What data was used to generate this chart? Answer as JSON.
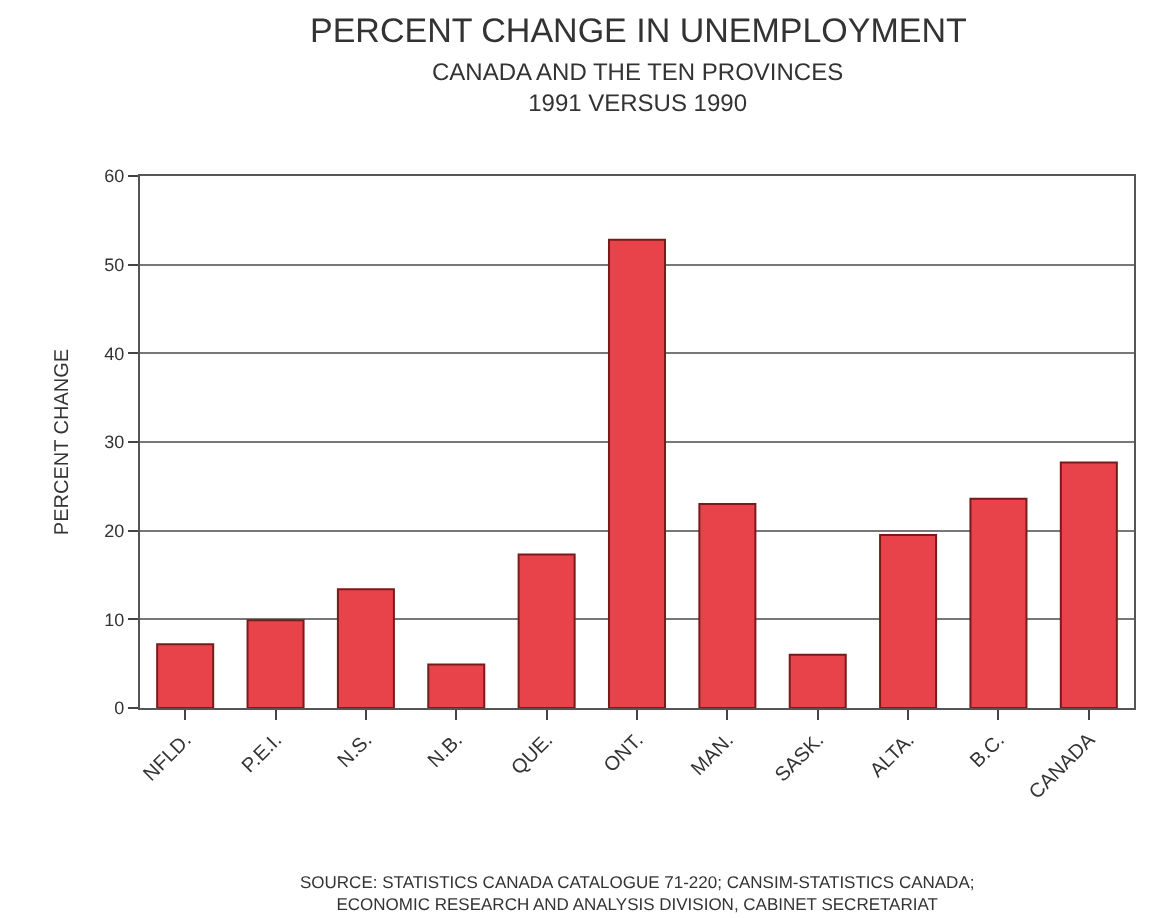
{
  "chart_data": {
    "type": "bar",
    "title": "PERCENT CHANGE IN UNEMPLOYMENT",
    "subtitle": "CANADA AND THE TEN PROVINCES\n1991 VERSUS 1990",
    "ylabel": "PERCENT CHANGE",
    "categories": [
      "NFLD.",
      "P.E.I.",
      "N.S.",
      "N.B.",
      "QUE.",
      "ONT.",
      "MAN.",
      "SASK.",
      "ALTA.",
      "B.C.",
      "CANADA"
    ],
    "values": [
      7.2,
      9.9,
      13.4,
      4.9,
      17.3,
      52.8,
      23.0,
      6.0,
      19.5,
      23.6,
      27.7
    ],
    "color": "#e8434b",
    "ylim": [
      0,
      60
    ],
    "yticks": [
      0,
      10,
      20,
      30,
      40,
      50,
      60
    ],
    "grid": "y",
    "annotations": [
      "SOURCE: STATISTICS CANADA CATALOGUE 71-220; CANSIM-STATISTICS CANADA;\nECONOMIC RESEARCH AND ANALYSIS DIVISION, CABINET SECRETARIAT"
    ]
  }
}
